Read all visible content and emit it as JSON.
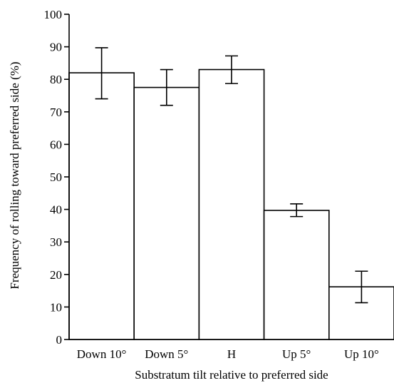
{
  "chart_data": {
    "type": "bar",
    "categories": [
      "Down 10°",
      "Down 5°",
      "H",
      "Up 5°",
      "Up 10°"
    ],
    "values": [
      82,
      77.5,
      83,
      39.7,
      16.2
    ],
    "error_low": [
      74,
      72,
      78.7,
      37.8,
      11.3
    ],
    "error_high": [
      89.7,
      83,
      87.2,
      41.7,
      21
    ],
    "xlabel": "Substratum tilt relative to preferred side",
    "ylabel": "Frequency of rolling toward preferred side (%)",
    "ylim": [
      0,
      100
    ],
    "yticks": [
      0,
      10,
      20,
      30,
      40,
      50,
      60,
      70,
      80,
      90,
      100
    ],
    "grid": false,
    "bar_fill": "#ffffff",
    "bar_edge": "#000000"
  }
}
